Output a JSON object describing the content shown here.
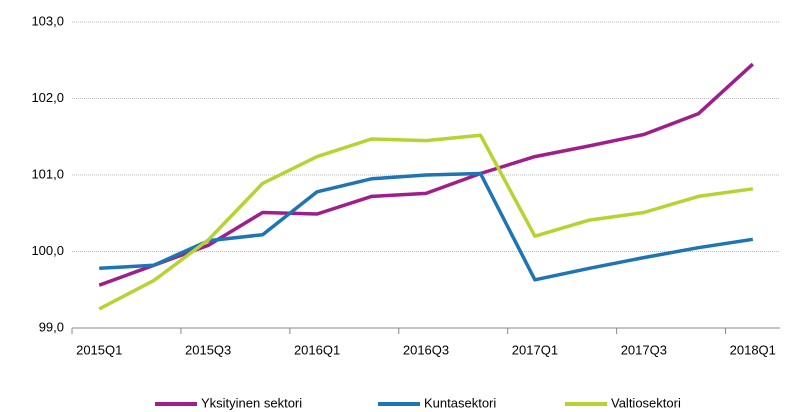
{
  "chart_data": {
    "type": "line",
    "categories": [
      "2015Q1",
      null,
      "2015Q3",
      null,
      "2016Q1",
      null,
      "2016Q3",
      null,
      "2017Q1",
      null,
      "2017Q3",
      null,
      "2018Q1"
    ],
    "series": [
      {
        "name": "Yksityinen sektori",
        "color": "#9e1f8c",
        "values": [
          99.56,
          99.82,
          100.08,
          100.51,
          100.49,
          100.72,
          100.76,
          101.02,
          101.24,
          101.38,
          101.53,
          101.8,
          102.45
        ]
      },
      {
        "name": "Kuntasektori",
        "color": "#1f74b4",
        "values": [
          99.78,
          99.82,
          100.14,
          100.22,
          100.78,
          100.95,
          101.0,
          101.02,
          99.63,
          99.78,
          99.92,
          100.05,
          100.16
        ]
      },
      {
        "name": "Valtiosektori",
        "color": "#b6d332",
        "values": [
          99.25,
          99.62,
          100.15,
          100.89,
          101.24,
          101.47,
          101.45,
          101.52,
          100.2,
          100.41,
          100.51,
          100.72,
          100.82
        ]
      }
    ],
    "ylim": [
      99,
      103
    ],
    "yticks": [
      {
        "value": 99,
        "label": "99,0"
      },
      {
        "value": 100,
        "label": "100,0"
      },
      {
        "value": 101,
        "label": "101,0"
      },
      {
        "value": 102,
        "label": "102,0"
      },
      {
        "value": 103,
        "label": "103,0"
      }
    ],
    "grid": true,
    "legend": "bottom"
  }
}
